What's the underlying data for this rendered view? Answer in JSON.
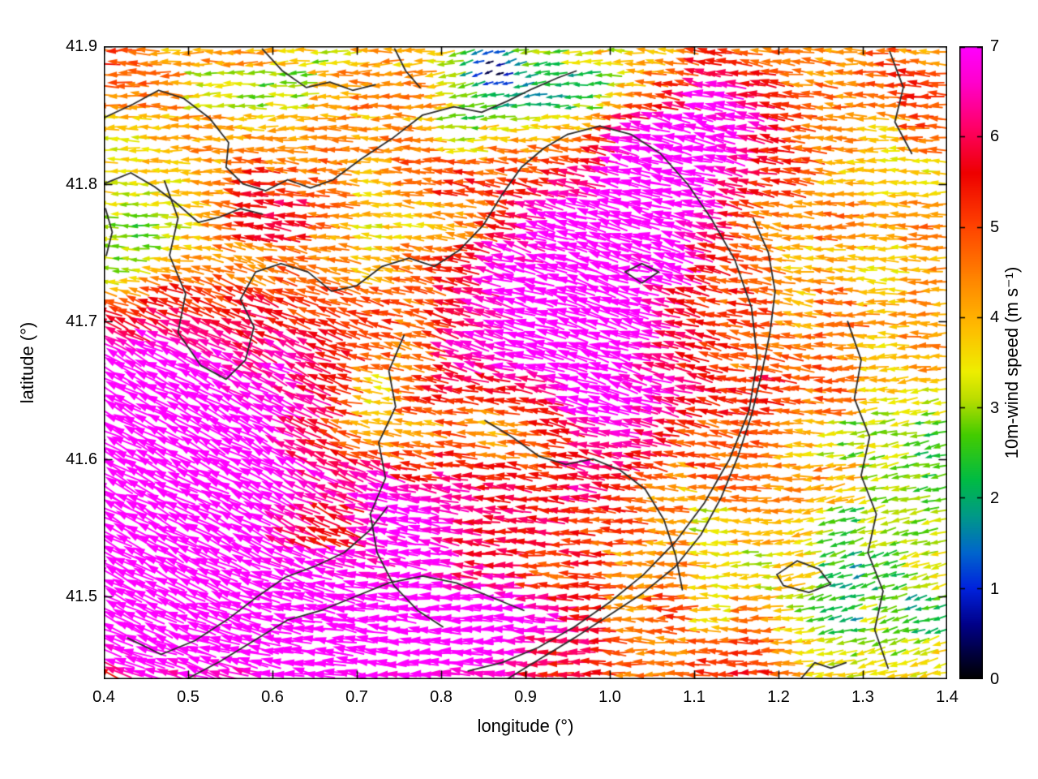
{
  "chart_data": {
    "type": "quiver",
    "title": "",
    "xlabel": "longitude (°)",
    "ylabel": "latitude (°)",
    "xlim": [
      0.4,
      1.4
    ],
    "ylim": [
      41.44,
      41.9
    ],
    "grid": false,
    "xticks": [
      {
        "v": 0.4,
        "label": "0.4"
      },
      {
        "v": 0.5,
        "label": "0.5"
      },
      {
        "v": 0.6,
        "label": "0.6"
      },
      {
        "v": 0.7,
        "label": "0.7"
      },
      {
        "v": 0.8,
        "label": "0.8"
      },
      {
        "v": 0.9,
        "label": "0.9"
      },
      {
        "v": 1.0,
        "label": "1.0"
      },
      {
        "v": 1.1,
        "label": "1.1"
      },
      {
        "v": 1.2,
        "label": "1.2"
      },
      {
        "v": 1.3,
        "label": "1.3"
      },
      {
        "v": 1.4,
        "label": "1.4"
      }
    ],
    "yticks": [
      {
        "v": 41.5,
        "label": "41.5"
      },
      {
        "v": 41.6,
        "label": "41.6"
      },
      {
        "v": 41.7,
        "label": "41.7"
      },
      {
        "v": 41.8,
        "label": "41.8"
      },
      {
        "v": 41.9,
        "label": "41.9"
      }
    ],
    "colorbar": {
      "label": "10m-wind speed (m s⁻¹)",
      "min": 0,
      "max": 7,
      "ticks": [
        0,
        1,
        2,
        3,
        4,
        5,
        6,
        7
      ],
      "stops": [
        {
          "v": 0.0,
          "c": "#000000"
        },
        {
          "v": 0.6,
          "c": "#000088"
        },
        {
          "v": 1.0,
          "c": "#0022dd"
        },
        {
          "v": 1.4,
          "c": "#0066cc"
        },
        {
          "v": 1.8,
          "c": "#009988"
        },
        {
          "v": 2.2,
          "c": "#00bb44"
        },
        {
          "v": 2.7,
          "c": "#44cc00"
        },
        {
          "v": 3.1,
          "c": "#bbdd00"
        },
        {
          "v": 3.4,
          "c": "#eeee00"
        },
        {
          "v": 3.9,
          "c": "#ffbb00"
        },
        {
          "v": 4.4,
          "c": "#ff8800"
        },
        {
          "v": 5.0,
          "c": "#ff4400"
        },
        {
          "v": 5.6,
          "c": "#ee0000"
        },
        {
          "v": 6.1,
          "c": "#ff0066"
        },
        {
          "v": 6.6,
          "c": "#ff00cc"
        },
        {
          "v": 7.0,
          "c": "#ff00ff"
        }
      ]
    },
    "field": {
      "nx": 80,
      "ny": 58,
      "seed": 7,
      "base_speed": 4.0,
      "base_dir": 180,
      "speed_noise": 0.9,
      "block_noise": 1.3,
      "dir_noise": 16,
      "blobs": [
        {
          "x": 0.53,
          "y": 41.6,
          "rx": 0.155,
          "ry": 0.1,
          "amp": 4.4,
          "dir": 150
        },
        {
          "x": 0.43,
          "y": 41.5,
          "rx": 0.1,
          "ry": 0.07,
          "amp": 3.8,
          "dir": 152
        },
        {
          "x": 0.4,
          "y": 41.66,
          "rx": 0.06,
          "ry": 0.06,
          "amp": 2.5,
          "dir": 150
        },
        {
          "x": 0.96,
          "y": 41.71,
          "rx": 0.15,
          "ry": 0.1,
          "amp": 4.4,
          "dir": 162
        },
        {
          "x": 1.06,
          "y": 41.8,
          "rx": 0.09,
          "ry": 0.05,
          "amp": 2.8,
          "dir": 165
        },
        {
          "x": 1.14,
          "y": 41.85,
          "rx": 0.08,
          "ry": 0.045,
          "amp": 2.6,
          "dir": 168
        },
        {
          "x": 0.82,
          "y": 41.465,
          "rx": 0.17,
          "ry": 0.05,
          "amp": 4.0,
          "dir": 176
        },
        {
          "x": 0.63,
          "y": 41.47,
          "rx": 0.08,
          "ry": 0.05,
          "amp": 3.0,
          "dir": 168
        },
        {
          "x": 0.77,
          "y": 41.555,
          "rx": 0.07,
          "ry": 0.04,
          "amp": 3.0,
          "dir": 170
        },
        {
          "x": 1.02,
          "y": 41.62,
          "rx": 0.05,
          "ry": 0.035,
          "amp": 1.5,
          "dir": 170
        },
        {
          "x": 0.62,
          "y": 41.79,
          "rx": 0.065,
          "ry": 0.04,
          "amp": 1.2,
          "dir": 172
        },
        {
          "x": 0.47,
          "y": 41.45,
          "rx": 0.07,
          "ry": 0.035,
          "amp": 1.2,
          "dir": 174
        },
        {
          "x": 0.93,
          "y": 41.555,
          "rx": 0.09,
          "ry": 0.035,
          "amp": 1.3,
          "dir": 176
        },
        {
          "x": 1.22,
          "y": 41.66,
          "rx": 0.07,
          "ry": 0.055,
          "amp": 0.9,
          "dir": 172
        },
        {
          "x": 0.76,
          "y": 41.825,
          "rx": 0.06,
          "ry": 0.035,
          "amp": 0.9,
          "dir": 176
        },
        {
          "x": 1.36,
          "y": 41.875,
          "rx": 0.06,
          "ry": 0.04,
          "amp": 0.9,
          "dir": 174
        },
        {
          "x": 0.42,
          "y": 41.885,
          "rx": 0.05,
          "ry": 0.03,
          "amp": 0.9,
          "dir": 176
        },
        {
          "x": 1.17,
          "y": 41.44,
          "rx": 0.08,
          "ry": 0.04,
          "amp": 0.8,
          "dir": 176
        },
        {
          "x": 0.88,
          "y": 41.862,
          "rx": 0.085,
          "ry": 0.042,
          "amp": -1.9,
          "dir": 192
        },
        {
          "x": 0.857,
          "y": 41.886,
          "rx": 0.028,
          "ry": 0.016,
          "amp": -2.6,
          "dir": 205
        },
        {
          "x": 0.46,
          "y": 41.765,
          "rx": 0.055,
          "ry": 0.032,
          "amp": -1.3,
          "dir": 186
        },
        {
          "x": 0.41,
          "y": 41.735,
          "rx": 0.035,
          "ry": 0.022,
          "amp": -1.1,
          "dir": 186
        },
        {
          "x": 0.72,
          "y": 41.645,
          "rx": 0.05,
          "ry": 0.028,
          "amp": -1.2,
          "dir": 188
        },
        {
          "x": 0.86,
          "y": 41.625,
          "rx": 0.06,
          "ry": 0.026,
          "amp": -1.3,
          "dir": 190
        },
        {
          "x": 1.33,
          "y": 41.5,
          "rx": 0.1,
          "ry": 0.075,
          "amp": -1.7,
          "dir": 200
        },
        {
          "x": 1.31,
          "y": 41.62,
          "rx": 0.055,
          "ry": 0.035,
          "amp": -0.8,
          "dir": 192
        },
        {
          "x": 0.63,
          "y": 41.875,
          "rx": 0.07,
          "ry": 0.032,
          "amp": -0.9,
          "dir": 184
        },
        {
          "x": 1.05,
          "y": 41.55,
          "rx": 0.055,
          "ry": 0.028,
          "amp": -0.7,
          "dir": 182
        },
        {
          "x": 0.78,
          "y": 41.765,
          "rx": 0.09,
          "ry": 0.028,
          "amp": -0.5,
          "dir": 182
        },
        {
          "x": 0.97,
          "y": 41.875,
          "rx": 0.05,
          "ry": 0.03,
          "amp": -1.2,
          "dir": 190
        },
        {
          "x": 1.39,
          "y": 41.6,
          "rx": 0.04,
          "ry": 0.05,
          "amp": -1.0,
          "dir": 195
        }
      ]
    },
    "contours": [
      [
        [
          0.4,
          41.848
        ],
        [
          0.435,
          41.858
        ],
        [
          0.465,
          41.868
        ],
        [
          0.495,
          41.862
        ],
        [
          0.525,
          41.848
        ],
        [
          0.548,
          41.83
        ],
        [
          0.545,
          41.812
        ],
        [
          0.565,
          41.8
        ],
        [
          0.592,
          41.795
        ],
        [
          0.618,
          41.803
        ],
        [
          0.645,
          41.797
        ],
        [
          0.672,
          41.803
        ],
        [
          0.705,
          41.818
        ],
        [
          0.742,
          41.833
        ],
        [
          0.778,
          41.85
        ],
        [
          0.815,
          41.856
        ],
        [
          0.848,
          41.852
        ],
        [
          0.878,
          41.86
        ],
        [
          0.908,
          41.869
        ],
        [
          0.938,
          41.877
        ],
        [
          0.96,
          41.882
        ]
      ],
      [
        [
          0.4,
          41.8
        ],
        [
          0.432,
          41.808
        ],
        [
          0.46,
          41.798
        ],
        [
          0.486,
          41.786
        ],
        [
          0.512,
          41.772
        ],
        [
          0.538,
          41.776
        ],
        [
          0.562,
          41.782
        ],
        [
          0.588,
          41.778
        ]
      ],
      [
        [
          0.472,
          41.802
        ],
        [
          0.488,
          41.775
        ],
        [
          0.478,
          41.748
        ],
        [
          0.497,
          41.72
        ],
        [
          0.488,
          41.692
        ],
        [
          0.515,
          41.668
        ],
        [
          0.545,
          41.658
        ],
        [
          0.568,
          41.672
        ],
        [
          0.578,
          41.696
        ],
        [
          0.562,
          41.716
        ],
        [
          0.58,
          41.736
        ],
        [
          0.61,
          41.742
        ]
      ],
      [
        [
          0.61,
          41.742
        ],
        [
          0.642,
          41.736
        ],
        [
          0.67,
          41.722
        ],
        [
          0.7,
          41.726
        ],
        [
          0.73,
          41.74
        ],
        [
          0.762,
          41.746
        ],
        [
          0.792,
          41.74
        ],
        [
          0.822,
          41.752
        ],
        [
          0.85,
          41.77
        ],
        [
          0.872,
          41.792
        ],
        [
          0.895,
          41.812
        ],
        [
          0.922,
          41.826
        ],
        [
          0.95,
          41.836
        ]
      ],
      [
        [
          0.95,
          41.836
        ],
        [
          0.988,
          41.842
        ],
        [
          1.025,
          41.836
        ],
        [
          1.06,
          41.822
        ],
        [
          1.092,
          41.8
        ],
        [
          1.12,
          41.775
        ],
        [
          1.148,
          41.745
        ],
        [
          1.168,
          41.71
        ],
        [
          1.175,
          41.672
        ],
        [
          1.165,
          41.635
        ],
        [
          1.142,
          41.6
        ],
        [
          1.112,
          41.568
        ],
        [
          1.078,
          41.54
        ],
        [
          1.04,
          41.516
        ],
        [
          1.0,
          41.496
        ],
        [
          0.958,
          41.478
        ],
        [
          0.915,
          41.463
        ],
        [
          0.872,
          41.452
        ],
        [
          0.832,
          41.446
        ]
      ],
      [
        [
          0.756,
          41.69
        ],
        [
          0.738,
          41.664
        ],
        [
          0.746,
          41.638
        ],
        [
          0.726,
          41.612
        ],
        [
          0.734,
          41.586
        ],
        [
          0.716,
          41.56
        ],
        [
          0.724,
          41.532
        ],
        [
          0.744,
          41.508
        ],
        [
          0.772,
          41.49
        ],
        [
          0.802,
          41.478
        ]
      ],
      [
        [
          0.852,
          41.628
        ],
        [
          0.884,
          41.616
        ],
        [
          0.916,
          41.602
        ],
        [
          0.948,
          41.596
        ],
        [
          0.98,
          41.6
        ],
        [
          1.012,
          41.592
        ],
        [
          1.042,
          41.578
        ],
        [
          1.064,
          41.556
        ],
        [
          1.078,
          41.53
        ],
        [
          1.086,
          41.505
        ]
      ],
      [
        [
          0.428,
          41.47
        ],
        [
          0.468,
          41.458
        ],
        [
          0.508,
          41.468
        ],
        [
          0.548,
          41.484
        ],
        [
          0.582,
          41.5
        ],
        [
          0.615,
          41.514
        ],
        [
          0.65,
          41.522
        ],
        [
          0.685,
          41.532
        ],
        [
          0.715,
          41.548
        ],
        [
          0.736,
          41.565
        ]
      ],
      [
        [
          0.498,
          41.44
        ],
        [
          0.538,
          41.453
        ],
        [
          0.578,
          41.468
        ],
        [
          0.618,
          41.483
        ],
        [
          0.658,
          41.49
        ],
        [
          0.698,
          41.5
        ],
        [
          0.738,
          41.51
        ],
        [
          0.778,
          41.515
        ],
        [
          0.818,
          41.51
        ],
        [
          0.858,
          41.5
        ],
        [
          0.898,
          41.49
        ]
      ],
      [
        [
          0.878,
          41.44
        ],
        [
          0.918,
          41.455
        ],
        [
          0.958,
          41.47
        ],
        [
          0.998,
          41.486
        ],
        [
          1.038,
          41.502
        ],
        [
          1.078,
          41.522
        ],
        [
          1.108,
          41.545
        ],
        [
          1.132,
          41.572
        ],
        [
          1.152,
          41.602
        ],
        [
          1.168,
          41.632
        ],
        [
          1.18,
          41.662
        ],
        [
          1.19,
          41.692
        ],
        [
          1.196,
          41.722
        ],
        [
          1.188,
          41.75
        ],
        [
          1.17,
          41.775
        ]
      ],
      [
        [
          1.282,
          41.7
        ],
        [
          1.298,
          41.672
        ],
        [
          1.29,
          41.644
        ],
        [
          1.308,
          41.616
        ],
        [
          1.298,
          41.588
        ],
        [
          1.316,
          41.56
        ],
        [
          1.306,
          41.532
        ],
        [
          1.324,
          41.504
        ],
        [
          1.314,
          41.476
        ],
        [
          1.33,
          41.448
        ]
      ],
      [
        [
          1.018,
          41.736
        ],
        [
          1.038,
          41.742
        ],
        [
          1.058,
          41.736
        ],
        [
          1.038,
          41.728
        ],
        [
          1.018,
          41.736
        ]
      ],
      [
        [
          1.198,
          41.516
        ],
        [
          1.222,
          41.526
        ],
        [
          1.248,
          41.52
        ],
        [
          1.262,
          41.509
        ],
        [
          1.236,
          41.503
        ],
        [
          1.206,
          41.508
        ],
        [
          1.198,
          41.516
        ]
      ],
      [
        [
          1.332,
          41.896
        ],
        [
          1.348,
          41.87
        ],
        [
          1.338,
          41.845
        ],
        [
          1.358,
          41.822
        ]
      ],
      [
        [
          0.588,
          41.898
        ],
        [
          0.612,
          41.882
        ],
        [
          0.64,
          41.87
        ],
        [
          0.668,
          41.874
        ],
        [
          0.695,
          41.868
        ],
        [
          0.722,
          41.872
        ]
      ],
      [
        [
          0.402,
          41.782
        ],
        [
          0.41,
          41.765
        ],
        [
          0.403,
          41.748
        ]
      ],
      [
        [
          0.745,
          41.898
        ],
        [
          0.758,
          41.882
        ],
        [
          0.775,
          41.87
        ]
      ],
      [
        [
          1.226,
          41.44
        ],
        [
          1.243,
          41.452
        ],
        [
          1.262,
          41.448
        ],
        [
          1.28,
          41.452
        ]
      ]
    ]
  }
}
